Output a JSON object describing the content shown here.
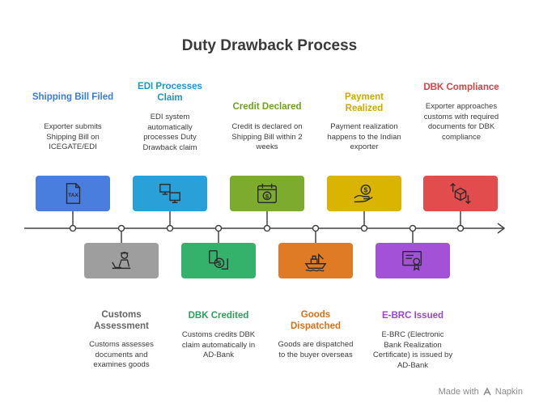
{
  "title": "Duty Drawback Process",
  "steps": [
    {
      "title": "Shipping Bill Filed",
      "desc": "Exporter submits Shipping Bill on ICEGATE/EDI",
      "color": "#4a7ede",
      "icon": "tax-document-icon"
    },
    {
      "title": "Customs Assessment",
      "desc": "Customs assesses documents and examines goods",
      "color": "#9e9e9e",
      "icon": "customs-officer-icon"
    },
    {
      "title": "EDI Processes Claim",
      "desc": "EDI system automatically processes Duty Drawback claim",
      "color": "#2aa0d8",
      "icon": "computers-icon"
    },
    {
      "title": "DBK Credited",
      "desc": "Customs credits DBK claim automatically in AD-Bank",
      "color": "#34b26c",
      "icon": "money-transfer-icon"
    },
    {
      "title": "Credit Declared",
      "desc": "Credit is declared on Shipping Bill within 2 weeks",
      "color": "#7dab2d",
      "icon": "calendar-money-icon"
    },
    {
      "title": "Goods Dispatched",
      "desc": "Goods are dispatched to the buyer overseas",
      "color": "#e07b25",
      "icon": "cargo-ship-icon"
    },
    {
      "title": "Payment Realized",
      "desc": "Payment realization happens to the Indian exporter",
      "color": "#d9b400",
      "icon": "hand-coin-icon"
    },
    {
      "title": "E-BRC Issued",
      "desc": "E-BRC (Electronic Bank Realization Certificate) is issued by AD-Bank",
      "color": "#a352d8",
      "icon": "certificate-icon"
    },
    {
      "title": "DBK Compliance",
      "desc": "Exporter approaches customs with required documents for DBK compliance",
      "color": "#e24c4c",
      "icon": "box-arrows-icon"
    }
  ],
  "title_colors": [
    "#3a7bd5",
    "#666666",
    "#1f95cf",
    "#2aa25c",
    "#6ea21e",
    "#d8701a",
    "#cfa800",
    "#9b45d0",
    "#d94242"
  ],
  "footer": {
    "made_with": "Made with",
    "brand": "Napkin"
  }
}
